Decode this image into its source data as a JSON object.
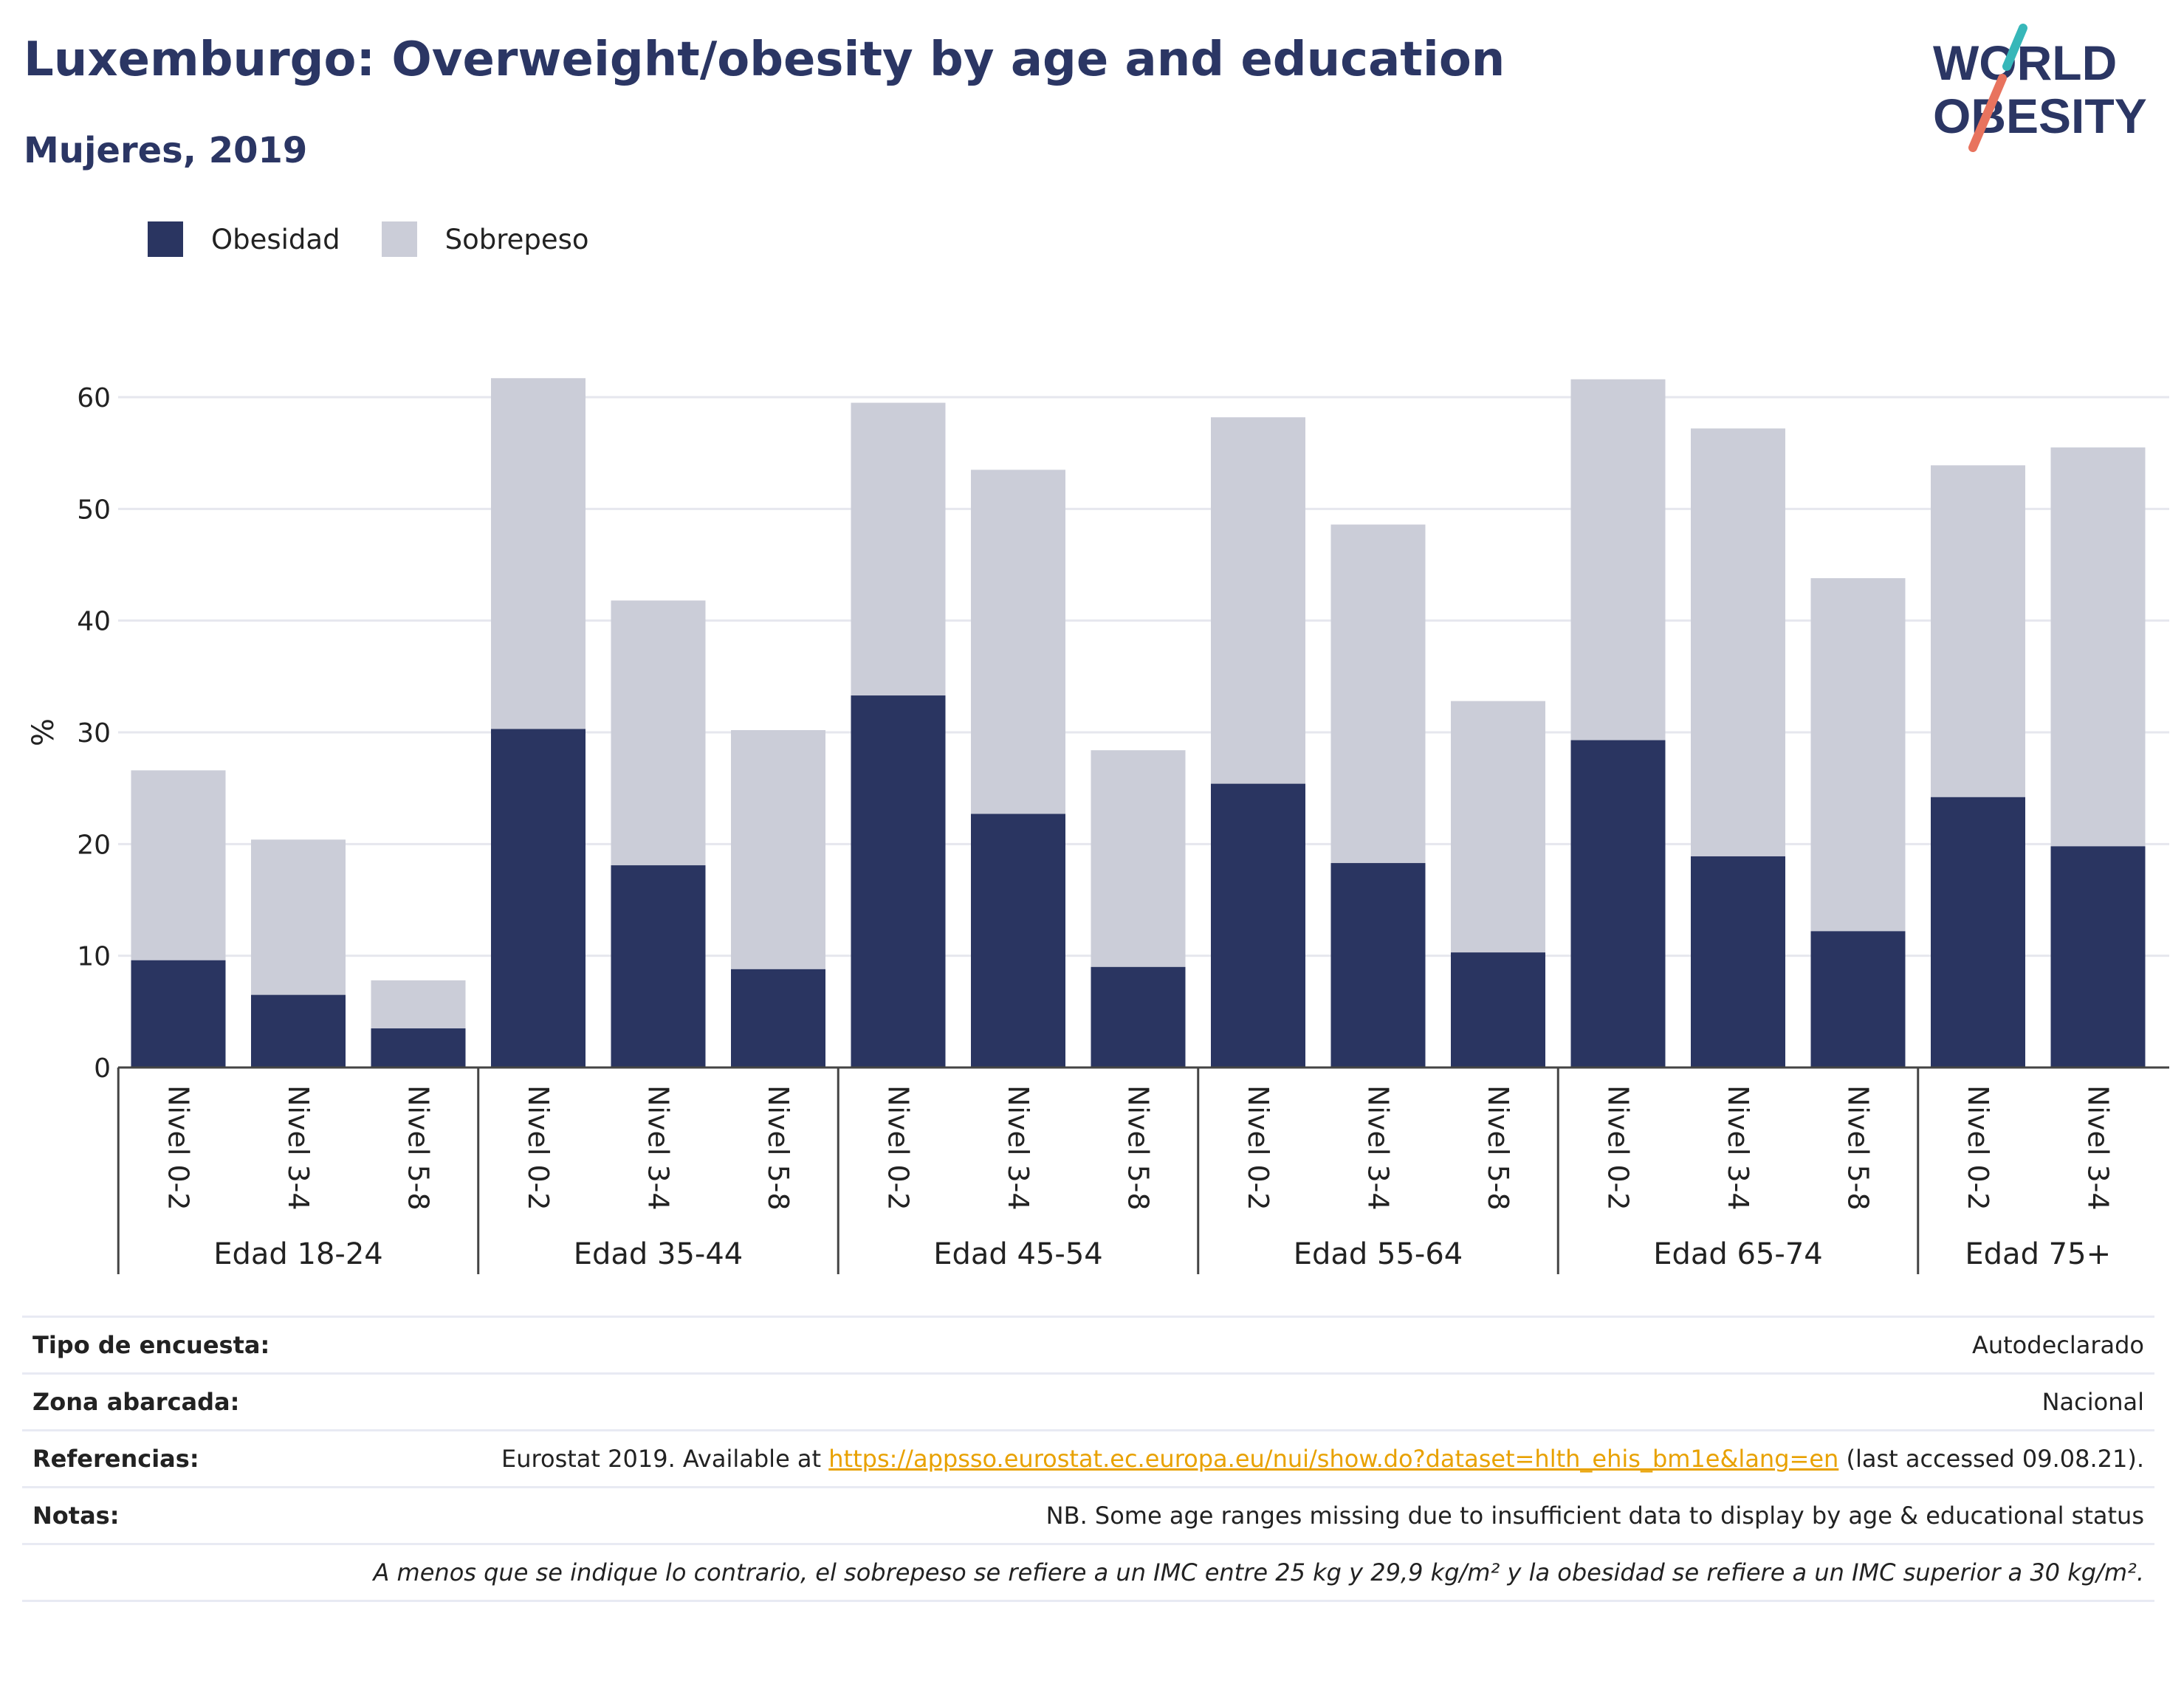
{
  "title": "Luxemburgo: Overweight/obesity by age and education",
  "subtitle": "Mujeres, 2019",
  "logo": {
    "line1": "WORLD",
    "line2": "OBESITY"
  },
  "colors": {
    "obesity": "#2a3561",
    "overweight": "#cbcdd8",
    "title": "#2b3664",
    "grid": "#e6e7ee",
    "link": "#e8a100",
    "logo_teal": "#37b7b9",
    "logo_coral": "#e8735e"
  },
  "chart_data": {
    "type": "bar",
    "stacked": true,
    "title": "Luxemburgo: Overweight/obesity by age and education",
    "subtitle": "Mujeres, 2019",
    "ylabel": "%",
    "ylim": [
      0,
      65
    ],
    "yticks": [
      0,
      10,
      20,
      30,
      40,
      50,
      60
    ],
    "grid": true,
    "legend_position": "top-left",
    "groups": [
      {
        "label": "Edad 18-24",
        "categories": [
          "Nivel 0-2",
          "Nivel 3-4",
          "Nivel 5-8"
        ]
      },
      {
        "label": "Edad 35-44",
        "categories": [
          "Nivel 0-2",
          "Nivel 3-4",
          "Nivel 5-8"
        ]
      },
      {
        "label": "Edad 45-54",
        "categories": [
          "Nivel 0-2",
          "Nivel 3-4",
          "Nivel 5-8"
        ]
      },
      {
        "label": "Edad 55-64",
        "categories": [
          "Nivel 0-2",
          "Nivel 3-4",
          "Nivel 5-8"
        ]
      },
      {
        "label": "Edad 65-74",
        "categories": [
          "Nivel 0-2",
          "Nivel 3-4",
          "Nivel 5-8"
        ]
      },
      {
        "label": "Edad 75+",
        "categories": [
          "Nivel 0-2",
          "Nivel 3-4"
        ]
      }
    ],
    "series": [
      {
        "name": "Obesidad",
        "color": "#2a3561",
        "values": [
          9.6,
          6.5,
          3.5,
          30.3,
          18.1,
          8.8,
          33.3,
          22.7,
          9.0,
          25.4,
          18.3,
          10.3,
          29.3,
          18.9,
          12.2,
          24.2,
          19.8
        ]
      },
      {
        "name": "Sobrepeso",
        "color": "#cbcdd8",
        "values": [
          17.0,
          13.9,
          4.3,
          31.4,
          23.7,
          21.4,
          26.2,
          30.8,
          19.4,
          32.8,
          30.3,
          22.5,
          32.3,
          38.3,
          31.6,
          29.7,
          35.7
        ]
      }
    ]
  },
  "meta": {
    "survey_label": "Tipo de encuesta:",
    "survey_value": "Autodeclarado",
    "area_label": "Zona abarcada:",
    "area_value": "Nacional",
    "refs_label": "Referencias:",
    "refs_prefix": "Eurostat 2019. Available at ",
    "refs_link": "https://appsso.eurostat.ec.europa.eu/nui/show.do?dataset=hlth_ehis_bm1e&lang=en",
    "refs_suffix": " (last accessed 09.08.21).",
    "notes_label": "Notas:",
    "notes_value": "NB. Some age ranges missing due to insufficient data to display by age & educational status",
    "footnote": "A menos que se indique lo contrario, el sobrepeso se refiere a un IMC entre 25 kg y 29,9 kg/m² y la obesidad se refiere a un IMC superior a 30 kg/m²."
  }
}
